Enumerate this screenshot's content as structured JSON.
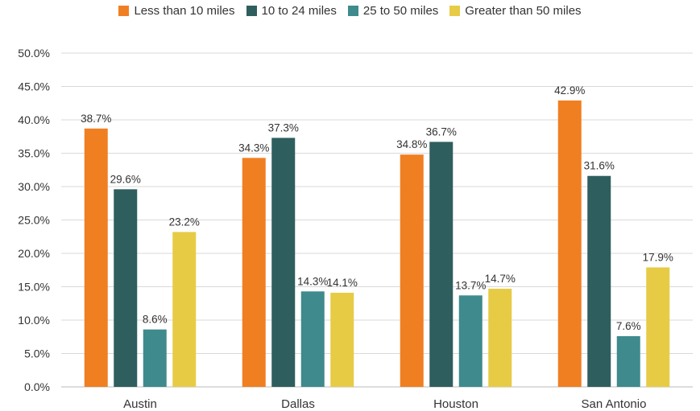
{
  "chart_data": {
    "type": "bar",
    "categories": [
      "Austin",
      "Dallas",
      "Houston",
      "San Antonio"
    ],
    "series": [
      {
        "name": "Less than 10 miles",
        "color": "#f07f22",
        "values": [
          38.7,
          34.3,
          34.8,
          42.9
        ]
      },
      {
        "name": "10 to 24 miles",
        "color": "#2f5e5e",
        "values": [
          29.6,
          37.3,
          36.7,
          31.6
        ]
      },
      {
        "name": "25 to 50 miles",
        "color": "#3f8a8c",
        "values": [
          8.6,
          14.3,
          13.7,
          7.6
        ]
      },
      {
        "name": "Greater than 50 miles",
        "color": "#e7cb45",
        "values": [
          23.2,
          14.1,
          14.7,
          17.9
        ]
      }
    ],
    "ylim": [
      0,
      50
    ],
    "yticks": [
      "0.0%",
      "5.0%",
      "10.0%",
      "15.0%",
      "20.0%",
      "25.0%",
      "30.0%",
      "35.0%",
      "40.0%",
      "45.0%",
      "50.0%"
    ],
    "value_suffix": "%",
    "grid": true,
    "legend_position": "top"
  }
}
